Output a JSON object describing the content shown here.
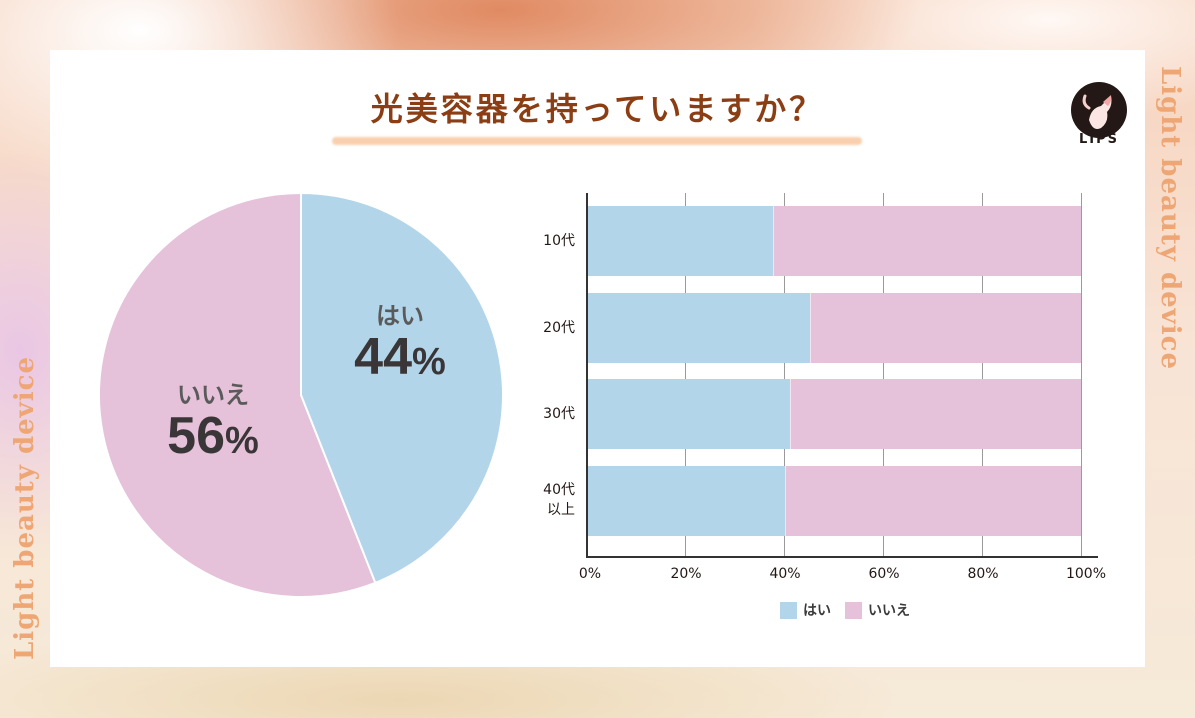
{
  "title": "光美容器を持っていますか？",
  "brand": {
    "logo_text": "LIPS"
  },
  "side_text": {
    "left": "Light beauty device",
    "right": "Light beauty device"
  },
  "colors": {
    "yes": "#b3d5ea",
    "no": "#e5c1da",
    "title": "#8b3d14",
    "side_text": "#eea774"
  },
  "pie": {
    "yes": {
      "label": "はい",
      "value": "44",
      "unit": "%"
    },
    "no": {
      "label": "いいえ",
      "value": "56",
      "unit": "%"
    }
  },
  "bar": {
    "rows": [
      {
        "label": "10代",
        "label2": ""
      },
      {
        "label": "20代",
        "label2": ""
      },
      {
        "label": "30代",
        "label2": ""
      },
      {
        "label": "40代",
        "label2": "以上"
      }
    ],
    "xticks": [
      "0%",
      "20%",
      "40%",
      "60%",
      "80%",
      "100%"
    ],
    "legend": {
      "yes": "はい",
      "no": "いいえ"
    }
  },
  "chart_data": [
    {
      "type": "pie",
      "title": "光美容器を持っていますか？",
      "categories": [
        "はい",
        "いいえ"
      ],
      "values": [
        44,
        56
      ],
      "unit": "%"
    },
    {
      "type": "bar",
      "orientation": "horizontal",
      "stacked": true,
      "title": "光美容器を持っていますか？",
      "categories": [
        "10代",
        "20代",
        "30代",
        "40代以上"
      ],
      "series": [
        {
          "name": "はい",
          "values": [
            37.5,
            45,
            41,
            40
          ]
        },
        {
          "name": "いいえ",
          "values": [
            62.5,
            55,
            59,
            60
          ]
        }
      ],
      "xlabel": "",
      "ylabel": "",
      "xlim": [
        0,
        100
      ],
      "xticks": [
        "0%",
        "20%",
        "40%",
        "60%",
        "80%",
        "100%"
      ],
      "grid": true,
      "legend_position": "bottom"
    }
  ]
}
